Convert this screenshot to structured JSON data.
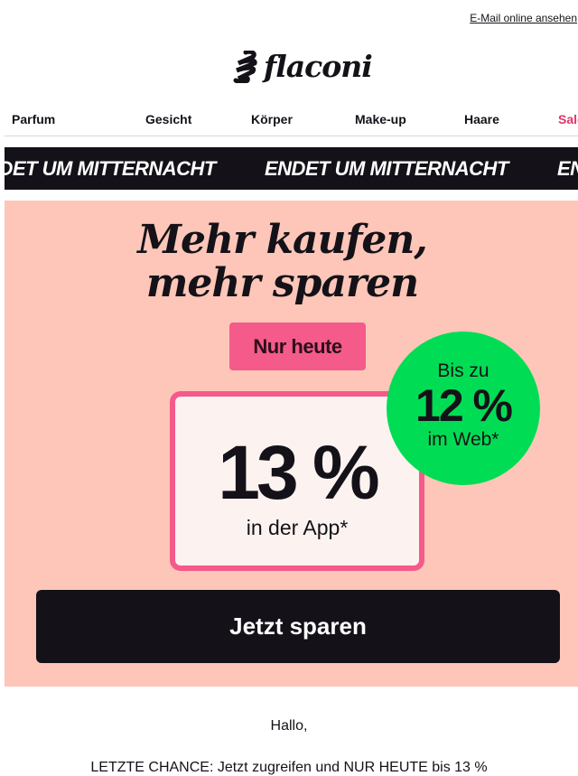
{
  "header": {
    "view_online": "E-Mail online ansehen",
    "logo": "flaconi"
  },
  "nav": [
    {
      "label": "Parfum"
    },
    {
      "label": "Gesicht"
    },
    {
      "label": "Körper"
    },
    {
      "label": "Make-up"
    },
    {
      "label": "Haare"
    },
    {
      "label": "Sale",
      "color": "#e0356a"
    }
  ],
  "stripe": {
    "text": "ENDET UM MITTERNACHT"
  },
  "banner": {
    "headline_1": "Mehr kaufen,",
    "headline_2": "mehr sparen",
    "badge": "Nur heute",
    "app_value": "13 %",
    "app_label": "in der App*",
    "web_prefix": "Bis zu",
    "web_value": "12 %",
    "web_label": "im Web*",
    "cta": "Jetzt sparen",
    "colors": {
      "background": "#fdc6b8",
      "pink": "#f45a8a",
      "green": "#00dd55",
      "dark": "#141218"
    }
  },
  "body": {
    "greeting": "Hallo,",
    "line1": "LETZTE CHANCE: Jetzt zugreifen und NUR HEUTE bis 13 %"
  }
}
